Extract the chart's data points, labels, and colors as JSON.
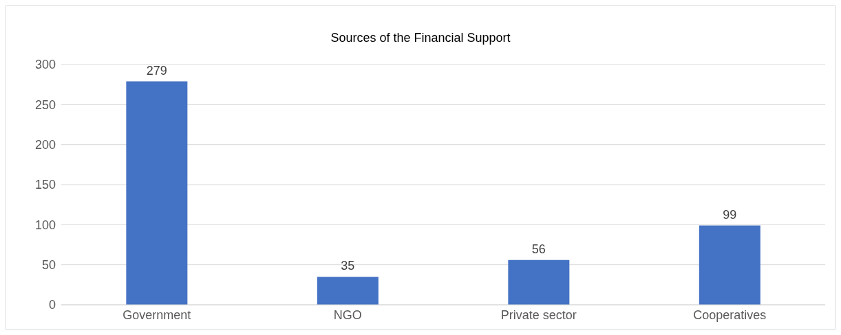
{
  "chart_data": {
    "type": "bar",
    "title": "Sources of the Financial Support",
    "categories": [
      "Government",
      "NGO",
      "Private sector",
      "Cooperatives"
    ],
    "values": [
      279,
      35,
      56,
      99
    ],
    "color": "#4472c4",
    "ylim": [
      0,
      300
    ],
    "yticks": [
      0,
      50,
      100,
      150,
      200,
      250,
      300
    ],
    "grid": "y",
    "data_labels": true
  }
}
